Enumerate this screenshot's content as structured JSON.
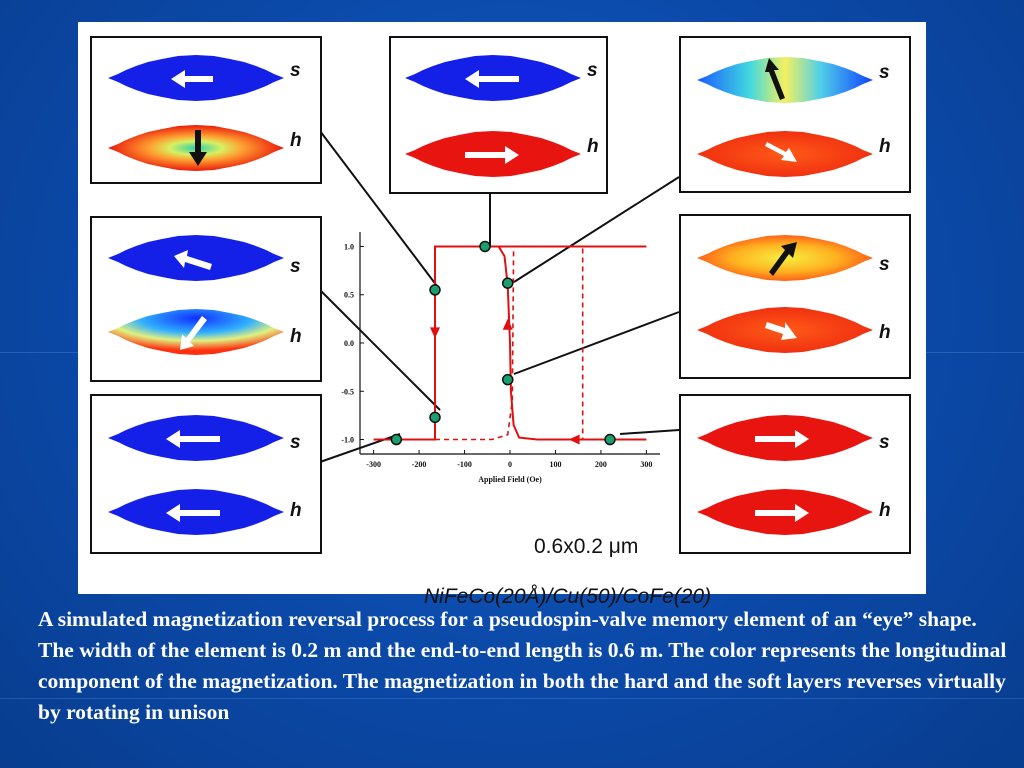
{
  "figure": {
    "size_label": "0.6x0.2 μm",
    "material_label": "NiFeCo(20Å)/Cu(50)/CoFe(20)",
    "layer_labels": {
      "soft": "s",
      "hard": "h"
    }
  },
  "chart_data": {
    "type": "line",
    "xlabel": "Applied Field (Oe)",
    "ylabel": "",
    "xlim": [
      -330,
      330
    ],
    "ylim": [
      -1.15,
      1.15
    ],
    "x_ticks": [
      "-300",
      "-200",
      "-100",
      "0",
      "100",
      "200",
      "300"
    ],
    "y_ticks": [
      "1.0",
      "0.5",
      "0.0",
      "-0.5",
      "-1.0"
    ],
    "series": [
      {
        "style": "solid",
        "color": "#e01010",
        "points": [
          [
            -300,
            -1.0
          ],
          [
            -165,
            -1.0
          ],
          [
            -165,
            1.0
          ],
          [
            300,
            1.0
          ]
        ]
      },
      {
        "style": "solid",
        "color": "#e01010",
        "points": [
          [
            300,
            -1.0
          ],
          [
            60,
            -1.0
          ],
          [
            20,
            -0.98
          ],
          [
            8,
            -0.85
          ],
          [
            2,
            -0.5
          ],
          [
            0,
            0
          ],
          [
            -5,
            0.6
          ],
          [
            -12,
            0.9
          ],
          [
            -25,
            1.0
          ],
          [
            -60,
            1.0
          ]
        ]
      },
      {
        "style": "dashed",
        "color": "#e01010",
        "points": [
          [
            -165,
            -1.0
          ],
          [
            -40,
            -1.0
          ],
          [
            -5,
            -0.95
          ],
          [
            5,
            -0.6
          ],
          [
            8,
            1.0
          ],
          [
            160,
            1.0
          ],
          [
            160,
            -1.0
          ]
        ]
      }
    ],
    "markers": [
      {
        "x": -165,
        "y": 0.55
      },
      {
        "x": -55,
        "y": 1.0
      },
      {
        "x": -5,
        "y": 0.62
      },
      {
        "x": -5,
        "y": -0.38
      },
      {
        "x": -165,
        "y": -0.77
      },
      {
        "x": -250,
        "y": -1.0
      },
      {
        "x": 220,
        "y": -1.0
      }
    ],
    "arrows": [
      {
        "x": -165,
        "y": 0.1,
        "dir": "down"
      },
      {
        "x": -5,
        "y": 0.2,
        "dir": "up"
      },
      {
        "x": 140,
        "y": -1.0,
        "dir": "left"
      }
    ]
  },
  "panels": [
    {
      "name": "panel-top-left",
      "soft": {
        "fill": "blue",
        "arrow": "left"
      },
      "hard": {
        "fill": "red-core",
        "arrow": "down"
      }
    },
    {
      "name": "panel-top-center",
      "soft": {
        "fill": "blue",
        "arrow": "left"
      },
      "hard": {
        "fill": "red",
        "arrow": "right"
      }
    },
    {
      "name": "panel-top-right",
      "soft": {
        "fill": "yellow-blue",
        "arrow": "up-left"
      },
      "hard": {
        "fill": "orange",
        "arrow": "right"
      }
    },
    {
      "name": "panel-mid-left",
      "soft": {
        "fill": "blue",
        "arrow": "left"
      },
      "hard": {
        "fill": "blue-red",
        "arrow": "down-left"
      }
    },
    {
      "name": "panel-mid-right",
      "soft": {
        "fill": "orange-yellow",
        "arrow": "up-right"
      },
      "hard": {
        "fill": "orange",
        "arrow": "right"
      }
    },
    {
      "name": "panel-bottom-left",
      "soft": {
        "fill": "blue",
        "arrow": "left"
      },
      "hard": {
        "fill": "blue",
        "arrow": "left"
      }
    },
    {
      "name": "panel-bottom-right",
      "soft": {
        "fill": "red",
        "arrow": "right"
      },
      "hard": {
        "fill": "red",
        "arrow": "right"
      }
    }
  ],
  "caption": "A simulated magnetization reversal process for a pseudospin-valve memory element of an “eye” shape. The width of the element is 0.2 m and the end-to-end length is 0.6 m. The color represents the longitudinal component of the magnetization. The magnetization in both the hard and the soft layers reverses virtually by rotating in unison"
}
